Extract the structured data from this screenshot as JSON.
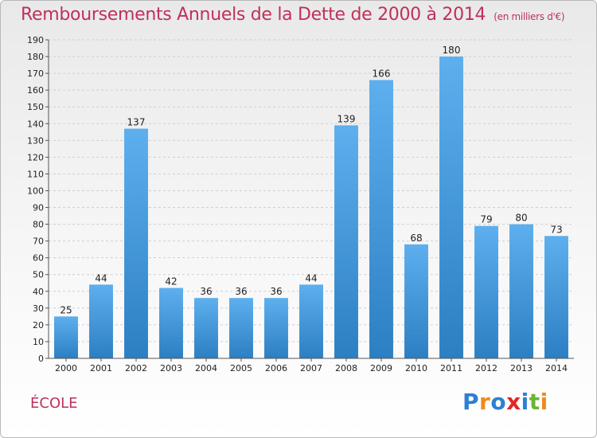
{
  "header": {
    "title": "Remboursements Annuels de la Dette de 2000 à 2014",
    "unit": "(en milliers d'€)"
  },
  "footer": {
    "commune": "ÉCOLE",
    "logo": {
      "text": "Proxiti",
      "letters": [
        {
          "ch": "P",
          "color": "#2f7fd0"
        },
        {
          "ch": "r",
          "color": "#f08a1c"
        },
        {
          "ch": "o",
          "color": "#2f7fd0"
        },
        {
          "ch": "x",
          "color": "#e0262a"
        },
        {
          "ch": "i",
          "color": "#2f7fd0"
        },
        {
          "ch": "t",
          "color": "#6cb432"
        },
        {
          "ch": "i",
          "color": "#f08a1c"
        }
      ]
    }
  },
  "colors": {
    "title": "#c0305a",
    "bar_top": "#5dafee",
    "bar_bottom": "#2c7fc2",
    "grid": "#cfcfcf",
    "axis_text": "#222222"
  },
  "chart_data": {
    "type": "bar",
    "title": "Remboursements Annuels de la Dette de 2000 à 2014",
    "subtitle": "(en milliers d'€)",
    "xlabel": "",
    "ylabel": "",
    "categories": [
      "2000",
      "2001",
      "2002",
      "2003",
      "2004",
      "2005",
      "2006",
      "2007",
      "2008",
      "2009",
      "2010",
      "2011",
      "2012",
      "2013",
      "2014"
    ],
    "values": [
      25,
      44,
      137,
      42,
      36,
      36,
      36,
      44,
      139,
      166,
      68,
      180,
      79,
      80,
      73
    ],
    "ylim": [
      0,
      190
    ],
    "yticks": [
      0,
      10,
      20,
      30,
      40,
      50,
      60,
      70,
      80,
      90,
      100,
      110,
      120,
      130,
      140,
      150,
      160,
      170,
      180,
      190
    ],
    "grid": true,
    "legend": "none"
  }
}
